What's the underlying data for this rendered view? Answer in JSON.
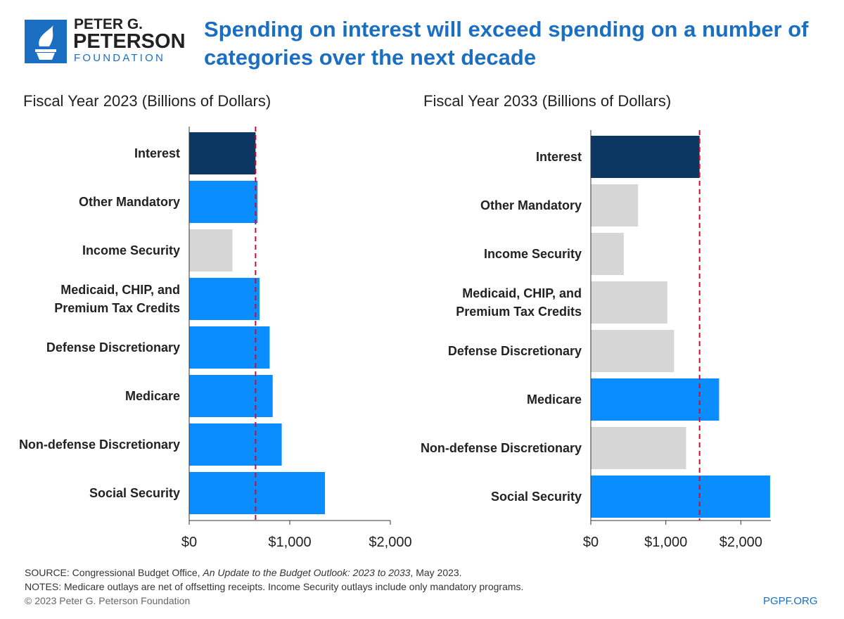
{
  "header": {
    "logo_line1": "PETER G.",
    "logo_line2": "PETERSON",
    "logo_line3": "FOUNDATION",
    "title": "Spending on interest will exceed spending on a number of categories over the next decade"
  },
  "chart_data": [
    {
      "type": "bar",
      "orientation": "horizontal",
      "title": "Fiscal Year 2023 (Billions of Dollars)",
      "categories": [
        "Interest",
        "Other Mandatory",
        "Income Security",
        "Medicaid, CHIP, and Premium Tax Credits",
        "Defense Discretionary",
        "Medicare",
        "Non-defense Discretionary",
        "Social Security"
      ],
      "values": [
        660,
        680,
        430,
        700,
        800,
        830,
        920,
        1350
      ],
      "colors": [
        "#0c3763",
        "#0a8dff",
        "#d6d6d6",
        "#0a8dff",
        "#0a8dff",
        "#0a8dff",
        "#0a8dff",
        "#0a8dff"
      ],
      "xlim": [
        0,
        2000
      ],
      "xticks": [
        {
          "value": 0,
          "label": "$0"
        },
        {
          "value": 1000,
          "label": "$1,000"
        },
        {
          "value": 2000,
          "label": "$2,000"
        }
      ],
      "reference_line_color": "#c8102e"
    },
    {
      "type": "bar",
      "orientation": "horizontal",
      "title": "Fiscal Year 2033 (Billions of Dollars)",
      "categories": [
        "Interest",
        "Other Mandatory",
        "Income Security",
        "Medicaid, CHIP, and Premium Tax Credits",
        "Defense Discretionary",
        "Medicare",
        "Non-defense Discretionary",
        "Social Security"
      ],
      "values": [
        1450,
        630,
        440,
        1020,
        1110,
        1710,
        1270,
        2390
      ],
      "colors": [
        "#0c3763",
        "#d6d6d6",
        "#d6d6d6",
        "#d6d6d6",
        "#d6d6d6",
        "#0a8dff",
        "#d6d6d6",
        "#0a8dff"
      ],
      "xlim": [
        0,
        2400
      ],
      "xticks": [
        {
          "value": 0,
          "label": "$0"
        },
        {
          "value": 1000,
          "label": "$1,000"
        },
        {
          "value": 2000,
          "label": "$2,000"
        }
      ],
      "reference_line_color": "#c8102e"
    }
  ],
  "footer": {
    "source_prefix": "SOURCE: Congressional Budget Office, ",
    "source_publication": "An Update to the Budget Outlook: 2023 to 2033",
    "source_suffix": ", May 2023.",
    "notes": "NOTES: Medicare outlays are net of offsetting receipts. Income Security outlays include only mandatory programs.",
    "copyright": "© 2023 Peter G. Peterson Foundation",
    "site": "PGPF.ORG"
  }
}
